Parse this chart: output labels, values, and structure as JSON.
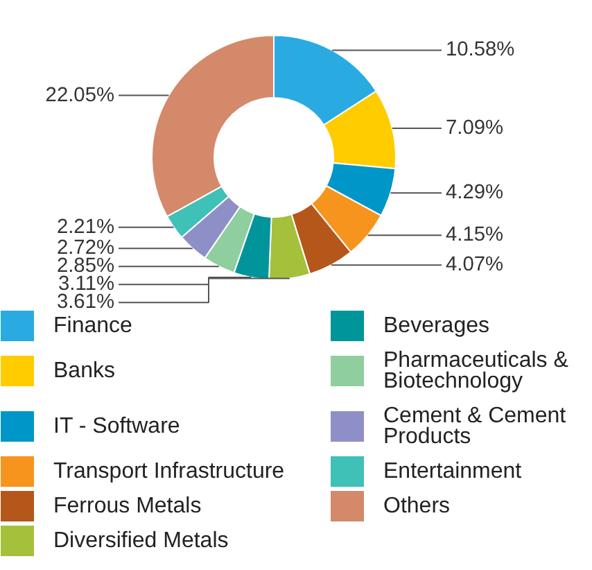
{
  "chart_data": {
    "type": "donut",
    "categories": [
      "Finance",
      "Banks",
      "IT - Software",
      "Transport Infrastructure",
      "Ferrous Metals",
      "Diversified Metals",
      "Beverages",
      "Pharmaceuticals & Biotechnology",
      "Cement & Cement Products",
      "Entertainment",
      "Others"
    ],
    "values": [
      10.58,
      7.09,
      4.29,
      4.15,
      4.07,
      3.61,
      3.11,
      2.85,
      2.72,
      2.21,
      22.05
    ],
    "value_labels": [
      "10.58%",
      "7.09%",
      "4.29%",
      "4.15%",
      "4.07%",
      "3.61%",
      "3.11%",
      "2.85%",
      "2.72%",
      "2.21%",
      "22.05%"
    ],
    "colors": [
      "#29abe2",
      "#ffcc00",
      "#0096c8",
      "#f7941d",
      "#b5561b",
      "#a5c03a",
      "#00959a",
      "#8fce9f",
      "#8f8fc8",
      "#3fc1b8",
      "#d4896a"
    ],
    "legend": "bottom"
  }
}
